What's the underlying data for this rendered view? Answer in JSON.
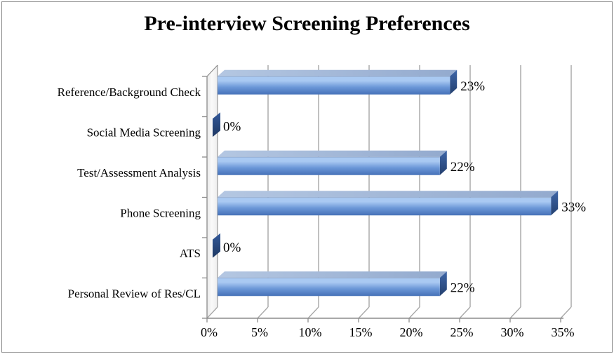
{
  "window": {
    "background": "#ffffff",
    "border_color": "#8a8a8a"
  },
  "chart_data": {
    "type": "bar",
    "orientation": "horizontal",
    "style": "3d-excel",
    "title": "Pre-interview Screening Preferences",
    "categories": [
      "Reference/Background Check",
      "Social Media Screening",
      "Test/Assessment Analysis",
      "Phone Screening",
      "ATS",
      "Personal Review of Res/CL"
    ],
    "values": [
      23,
      0,
      22,
      33,
      0,
      22
    ],
    "data_labels": [
      "23%",
      "0%",
      "22%",
      "33%",
      "0%",
      "22%"
    ],
    "xlabel": "",
    "ylabel": "",
    "xlim": [
      0,
      35
    ],
    "x_tick_step": 5,
    "x_tick_labels": [
      "0%",
      "5%",
      "10%",
      "15%",
      "20%",
      "25%",
      "30%",
      "35%"
    ],
    "grid": true,
    "legend": false,
    "colors": {
      "bar_face_edge": "#8098BC",
      "bar_face_light": "#A9C9F2",
      "bar_face_mid": "#6B97D7",
      "bar_face_dark": "#4671B8",
      "bar_side_light": "#3E66A8",
      "bar_side_dark": "#24406F",
      "bar_top_light": "#B4C7E2",
      "bar_top_dark": "#93AACE",
      "zero_bar_light": "#33599A",
      "zero_bar_dark": "#1E3862",
      "gridline": "#A6A6A6",
      "axis": "#8C8C8C",
      "text": "#000000"
    }
  }
}
